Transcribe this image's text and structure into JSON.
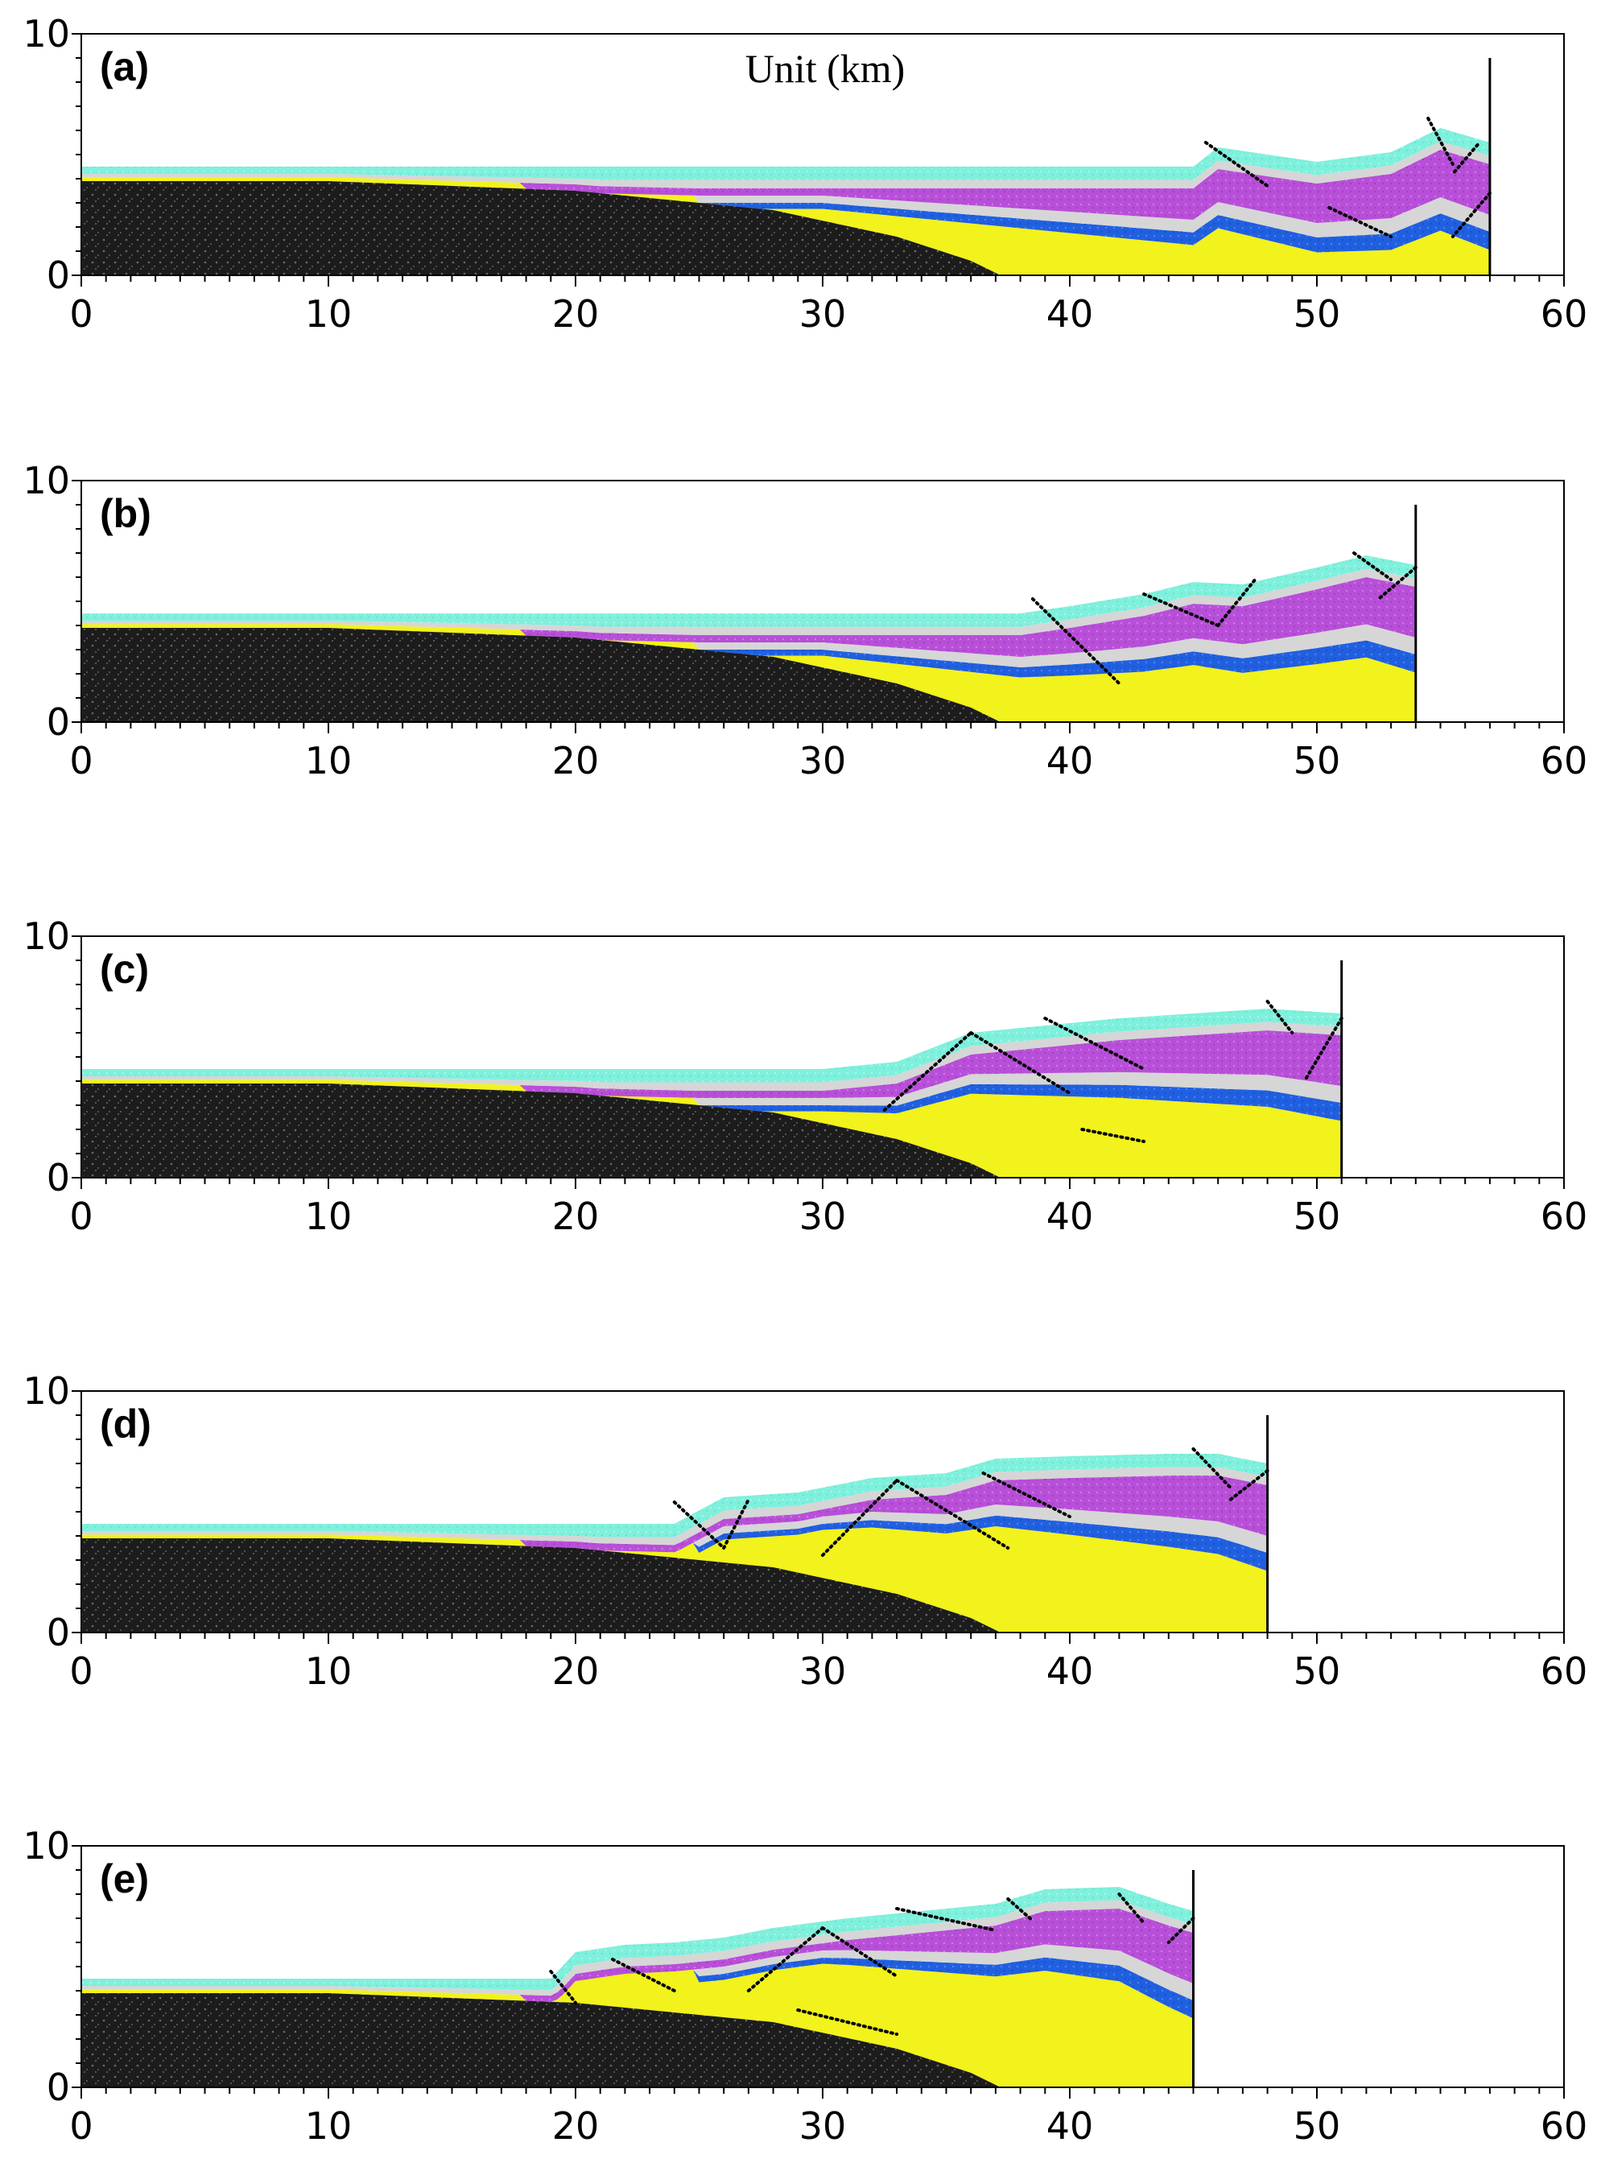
{
  "figure": {
    "unit_label": "Unit (km)",
    "colors": {
      "basement": "#1c1c1c",
      "yellow_layer": "#f2f21c",
      "blue_layer": "#2060e0",
      "grey_layer": "#d6d6d6",
      "magenta_layer": "#b84fd8",
      "cyan_layer": "#7ff0dc",
      "fault_line": "#000000",
      "axis": "#000000"
    }
  },
  "chart_data": [
    {
      "type": "area",
      "panel": "(a)",
      "xlim": [
        0,
        60
      ],
      "ylim": [
        0,
        10
      ],
      "xticks": [
        "0",
        "10",
        "20",
        "30",
        "40",
        "50",
        "60"
      ],
      "yticks": [
        "0",
        "10"
      ],
      "wall_x": 57,
      "basement_surface": [
        [
          0,
          3.9
        ],
        [
          10,
          3.9
        ],
        [
          20,
          3.5
        ],
        [
          28,
          2.7
        ],
        [
          33,
          1.6
        ],
        [
          36,
          0.6
        ],
        [
          37.2,
          0
        ]
      ],
      "cover_top": [
        [
          0,
          4.5
        ],
        [
          40,
          4.5
        ],
        [
          45,
          4.5
        ],
        [
          46,
          5.3
        ],
        [
          50,
          4.7
        ],
        [
          53,
          5.1
        ],
        [
          55,
          6.1
        ],
        [
          57,
          5.5
        ]
      ],
      "faults": [
        [
          [
            45.5,
            5.5
          ],
          [
            48,
            3.7
          ]
        ],
        [
          [
            54.5,
            6.5
          ],
          [
            55.5,
            4.6
          ]
        ],
        [
          [
            56.5,
            5.4
          ],
          [
            55.5,
            4.2
          ]
        ],
        [
          [
            50.5,
            2.8
          ],
          [
            53,
            1.6
          ]
        ],
        [
          [
            57,
            3.4
          ],
          [
            55.5,
            1.6
          ]
        ]
      ]
    },
    {
      "type": "area",
      "panel": "(b)",
      "xlim": [
        0,
        60
      ],
      "ylim": [
        0,
        10
      ],
      "xticks": [
        "0",
        "10",
        "20",
        "30",
        "40",
        "50",
        "60"
      ],
      "yticks": [
        "0",
        "10"
      ],
      "wall_x": 54,
      "basement_surface": [
        [
          0,
          3.9
        ],
        [
          10,
          3.9
        ],
        [
          20,
          3.5
        ],
        [
          28,
          2.7
        ],
        [
          33,
          1.6
        ],
        [
          36,
          0.6
        ],
        [
          37.2,
          0
        ]
      ],
      "cover_top": [
        [
          0,
          4.5
        ],
        [
          38,
          4.5
        ],
        [
          40,
          4.8
        ],
        [
          43,
          5.3
        ],
        [
          45,
          5.8
        ],
        [
          47,
          5.7
        ],
        [
          50,
          6.4
        ],
        [
          52,
          6.9
        ],
        [
          54,
          6.5
        ]
      ],
      "faults": [
        [
          [
            38.5,
            5.1
          ],
          [
            42,
            1.6
          ]
        ],
        [
          [
            43,
            5.3
          ],
          [
            46,
            4.0
          ]
        ],
        [
          [
            46,
            4.0
          ],
          [
            47.5,
            5.9
          ]
        ],
        [
          [
            51.5,
            7.0
          ],
          [
            53,
            5.9
          ]
        ],
        [
          [
            54,
            6.4
          ],
          [
            52.5,
            5.1
          ]
        ]
      ]
    },
    {
      "type": "area",
      "panel": "(c)",
      "xlim": [
        0,
        60
      ],
      "ylim": [
        0,
        10
      ],
      "xticks": [
        "0",
        "10",
        "20",
        "30",
        "40",
        "50",
        "60"
      ],
      "yticks": [
        "0",
        "10"
      ],
      "wall_x": 51,
      "basement_surface": [
        [
          0,
          3.9
        ],
        [
          10,
          3.9
        ],
        [
          20,
          3.5
        ],
        [
          28,
          2.7
        ],
        [
          33,
          1.6
        ],
        [
          36,
          0.6
        ],
        [
          37.2,
          0
        ]
      ],
      "cover_top": [
        [
          0,
          4.5
        ],
        [
          30,
          4.5
        ],
        [
          33,
          4.8
        ],
        [
          36,
          6.0
        ],
        [
          39,
          6.3
        ],
        [
          42,
          6.6
        ],
        [
          45,
          6.8
        ],
        [
          48,
          7.0
        ],
        [
          51,
          6.8
        ]
      ],
      "faults": [
        [
          [
            32.5,
            2.8
          ],
          [
            36,
            6.0
          ]
        ],
        [
          [
            36,
            6.0
          ],
          [
            40,
            3.5
          ]
        ],
        [
          [
            39,
            6.6
          ],
          [
            43,
            4.5
          ]
        ],
        [
          [
            40.5,
            2.0
          ],
          [
            43,
            1.5
          ]
        ],
        [
          [
            48,
            7.3
          ],
          [
            49,
            6.0
          ]
        ],
        [
          [
            51,
            6.6
          ],
          [
            49.5,
            4.0
          ]
        ]
      ]
    },
    {
      "type": "area",
      "panel": "(d)",
      "xlim": [
        0,
        60
      ],
      "ylim": [
        0,
        10
      ],
      "xticks": [
        "0",
        "10",
        "20",
        "30",
        "40",
        "50",
        "60"
      ],
      "yticks": [
        "0",
        "10"
      ],
      "wall_x": 48,
      "basement_surface": [
        [
          0,
          3.9
        ],
        [
          10,
          3.9
        ],
        [
          20,
          3.5
        ],
        [
          28,
          2.7
        ],
        [
          33,
          1.6
        ],
        [
          36,
          0.6
        ],
        [
          37.2,
          0
        ]
      ],
      "cover_top": [
        [
          0,
          4.5
        ],
        [
          24,
          4.5
        ],
        [
          26,
          5.6
        ],
        [
          29,
          5.8
        ],
        [
          32,
          6.4
        ],
        [
          35,
          6.6
        ],
        [
          37,
          7.2
        ],
        [
          40,
          7.3
        ],
        [
          44,
          7.4
        ],
        [
          46,
          7.4
        ],
        [
          48,
          7.0
        ]
      ],
      "faults": [
        [
          [
            24,
            5.4
          ],
          [
            26,
            3.5
          ]
        ],
        [
          [
            26,
            3.5
          ],
          [
            27,
            5.5
          ]
        ],
        [
          [
            30,
            3.2
          ],
          [
            33,
            6.3
          ]
        ],
        [
          [
            33,
            6.3
          ],
          [
            37.5,
            3.5
          ]
        ],
        [
          [
            36.5,
            6.6
          ],
          [
            40,
            4.8
          ]
        ],
        [
          [
            45,
            7.6
          ],
          [
            46.5,
            6.0
          ]
        ],
        [
          [
            48,
            6.7
          ],
          [
            46.5,
            5.5
          ]
        ]
      ]
    },
    {
      "type": "area",
      "panel": "(e)",
      "xlim": [
        0,
        60
      ],
      "ylim": [
        0,
        10
      ],
      "xticks": [
        "0",
        "10",
        "20",
        "30",
        "40",
        "50",
        "60"
      ],
      "yticks": [
        "0",
        "10"
      ],
      "wall_x": 45,
      "basement_surface": [
        [
          0,
          3.9
        ],
        [
          10,
          3.9
        ],
        [
          20,
          3.5
        ],
        [
          28,
          2.7
        ],
        [
          33,
          1.6
        ],
        [
          36,
          0.6
        ],
        [
          37.2,
          0
        ]
      ],
      "cover_top": [
        [
          0,
          4.5
        ],
        [
          19,
          4.5
        ],
        [
          20,
          5.6
        ],
        [
          22,
          5.9
        ],
        [
          24,
          6.0
        ],
        [
          26,
          6.2
        ],
        [
          28,
          6.6
        ],
        [
          31,
          7.0
        ],
        [
          34,
          7.3
        ],
        [
          37,
          7.6
        ],
        [
          39,
          8.2
        ],
        [
          42,
          8.3
        ],
        [
          44,
          7.6
        ],
        [
          45,
          7.3
        ]
      ],
      "faults": [
        [
          [
            19,
            4.8
          ],
          [
            20,
            3.5
          ]
        ],
        [
          [
            21.5,
            5.3
          ],
          [
            24,
            4.0
          ]
        ],
        [
          [
            27,
            4.0
          ],
          [
            30,
            6.6
          ]
        ],
        [
          [
            30,
            6.6
          ],
          [
            33,
            4.6
          ]
        ],
        [
          [
            33,
            7.4
          ],
          [
            37,
            6.5
          ]
        ],
        [
          [
            37.5,
            7.8
          ],
          [
            38.5,
            6.9
          ]
        ],
        [
          [
            42,
            8.0
          ],
          [
            43,
            6.8
          ]
        ],
        [
          [
            45,
            7.0
          ],
          [
            44,
            6.0
          ]
        ],
        [
          [
            29,
            3.2
          ],
          [
            33,
            2.2
          ]
        ]
      ]
    }
  ]
}
